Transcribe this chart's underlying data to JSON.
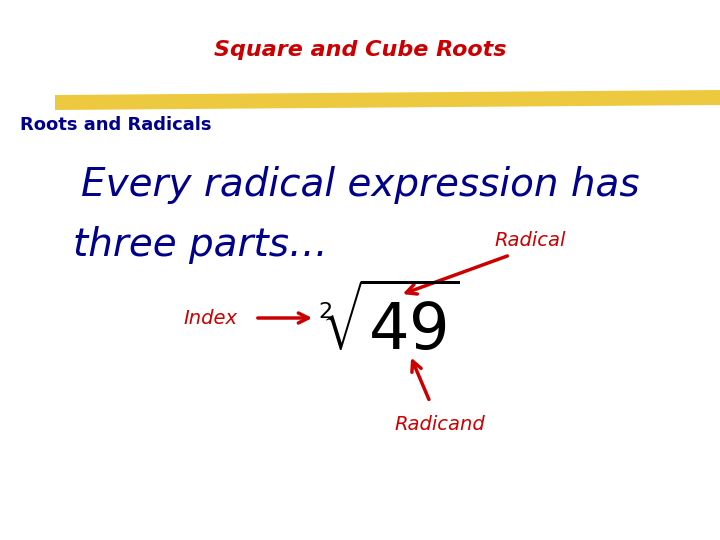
{
  "bg_color": "#ffffff",
  "title_text": "Square and Cube Roots",
  "title_color": "#cc0000",
  "title_fontsize": 16,
  "subtitle_text": "Roots and Radicals",
  "subtitle_color": "#00008b",
  "subtitle_fontsize": 13,
  "highlight_color": "#e8b800",
  "main_text_line1": "Every radical expression has",
  "main_text_line2": "three parts…",
  "main_text_color": "#00008b",
  "main_fontsize": 28,
  "label_radical": "Radical",
  "label_index": "Index",
  "label_radicand": "Radicand",
  "label_color": "#cc0000",
  "label_fontsize": 14,
  "index_number": "2",
  "radicand_number": "49"
}
